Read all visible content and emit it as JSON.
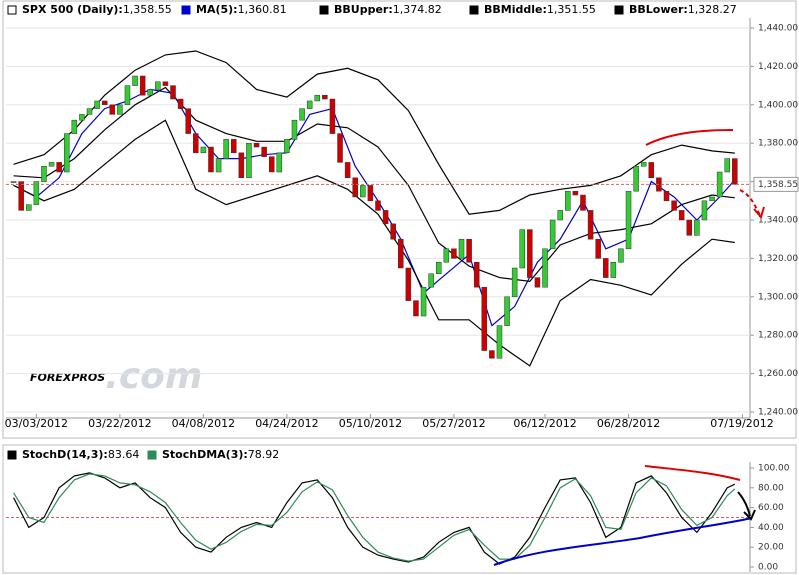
{
  "chart_data": [
    {
      "type": "candlestick",
      "name": "SPX 500 (Daily):",
      "last": {
        "value": 1358.55,
        "label": "1,358.55"
      },
      "up_color": "#33cc33",
      "down_color": "#cc0000",
      "x": [
        0,
        1,
        2,
        3,
        4,
        5,
        6,
        7,
        8,
        9,
        10,
        11,
        12,
        13,
        14,
        15,
        16,
        17,
        18,
        19,
        20,
        21,
        22,
        23,
        24,
        25,
        26,
        27,
        28,
        29,
        30,
        31,
        32,
        33,
        34,
        35,
        36,
        37,
        38,
        39,
        40,
        41,
        42,
        43,
        44,
        45,
        46,
        47,
        48,
        49,
        50,
        51,
        52,
        53,
        54,
        55,
        56,
        57,
        58,
        59,
        60,
        61,
        62,
        63,
        64,
        65,
        66,
        67,
        68,
        69,
        70,
        71,
        72,
        73,
        74,
        75,
        76,
        77,
        78,
        79,
        80,
        81,
        82,
        83,
        84,
        85,
        86,
        87,
        88,
        89,
        90,
        91,
        92,
        93,
        94,
        95
      ],
      "values": [
        1360,
        1345,
        1348,
        1360,
        1368,
        1370,
        1365,
        1385,
        1392,
        1395,
        1398,
        1402,
        1400,
        1395,
        1400,
        1410,
        1415,
        1405,
        1408,
        1412,
        1410,
        1403,
        1398,
        1385,
        1375,
        1378,
        1365,
        1372,
        1382,
        1375,
        1362,
        1380,
        1378,
        1373,
        1365,
        1375,
        1382,
        1392,
        1398,
        1402,
        1405,
        1403,
        1385,
        1370,
        1362,
        1352,
        1358,
        1350,
        1345,
        1338,
        1330,
        1315,
        1298,
        1290,
        1305,
        1312,
        1318,
        1325,
        1320,
        1330,
        1318,
        1305,
        1272,
        1268,
        1285,
        1300,
        1315,
        1335,
        1310,
        1305,
        1325,
        1340,
        1345,
        1355,
        1353,
        1345,
        1330,
        1320,
        1310,
        1318,
        1325,
        1355,
        1368,
        1370,
        1362,
        1355,
        1350,
        1345,
        1340,
        1332,
        1340,
        1350,
        1352,
        1365,
        1372,
        1358.55
      ],
      "xlim": [
        -1,
        97
      ],
      "xticks": [
        {
          "value": 3,
          "label": "03/03/2012"
        },
        {
          "value": 14,
          "label": "03/22/2012"
        },
        {
          "value": 25,
          "label": "04/08/2012"
        },
        {
          "value": 36,
          "label": "04/24/2012"
        },
        {
          "value": 47,
          "label": "05/10/2012"
        },
        {
          "value": 58,
          "label": "05/27/2012"
        },
        {
          "value": 70,
          "label": "06/12/2012"
        },
        {
          "value": 81,
          "label": "06/28/2012"
        },
        {
          "value": 96,
          "label": "07/19/2012"
        }
      ],
      "ylim": [
        1240,
        1440
      ],
      "yticks": [
        {
          "value": 1240,
          "label": "1,240.00"
        },
        {
          "value": 1260,
          "label": "1,260.00"
        },
        {
          "value": 1280,
          "label": "1,280.00"
        },
        {
          "value": 1300,
          "label": "1,300.00"
        },
        {
          "value": 1320,
          "label": "1,320.00"
        },
        {
          "value": 1340,
          "label": "1,340.00"
        },
        {
          "value": 1360,
          "label": "1,360.00"
        },
        {
          "value": 1380,
          "label": "1,380.00"
        },
        {
          "value": 1400,
          "label": "1,400.00"
        },
        {
          "value": 1420,
          "label": "1,420.00"
        },
        {
          "value": 1440,
          "label": "1,440.00"
        }
      ],
      "grid": true,
      "watermark": [
        "FOREXPROS",
        ".com"
      ],
      "overlays": [
        {
          "name": "MA(5):",
          "last": {
            "value": 1360.81,
            "label": "1,360.81"
          },
          "color": "#0000cc",
          "x": [
            0,
            3,
            6,
            9,
            12,
            15,
            18,
            21,
            24,
            27,
            30,
            33,
            36,
            39,
            42,
            45,
            48,
            51,
            54,
            57,
            60,
            63,
            66,
            69,
            72,
            75,
            78,
            81,
            84,
            87,
            90,
            93,
            95
          ],
          "values": [
            1358,
            1352,
            1362,
            1385,
            1398,
            1402,
            1408,
            1406,
            1385,
            1372,
            1372,
            1374,
            1375,
            1395,
            1398,
            1368,
            1350,
            1330,
            1302,
            1312,
            1322,
            1285,
            1295,
            1318,
            1330,
            1350,
            1325,
            1330,
            1360,
            1352,
            1340,
            1352,
            1360.81
          ]
        },
        {
          "name": "BBUpper:",
          "last": {
            "value": 1374.82,
            "label": "1,374.82"
          },
          "color": "#000000",
          "x": [
            0,
            4,
            8,
            12,
            16,
            20,
            24,
            28,
            32,
            36,
            40,
            44,
            48,
            52,
            56,
            60,
            64,
            68,
            72,
            76,
            80,
            84,
            88,
            92,
            95
          ],
          "values": [
            1369,
            1374,
            1387,
            1405,
            1418,
            1426,
            1428,
            1422,
            1408,
            1404,
            1416,
            1419,
            1413,
            1397,
            1369,
            1343,
            1345,
            1353,
            1356,
            1358,
            1363,
            1374,
            1379,
            1376,
            1374.82
          ]
        },
        {
          "name": "BBMiddle:",
          "last": {
            "value": 1351.55,
            "label": "1,351.55"
          },
          "color": "#000000",
          "x": [
            0,
            4,
            8,
            12,
            16,
            20,
            24,
            28,
            32,
            36,
            40,
            44,
            48,
            52,
            56,
            60,
            64,
            68,
            72,
            76,
            80,
            84,
            88,
            92,
            95
          ],
          "values": [
            1363,
            1362,
            1372,
            1387,
            1400,
            1409,
            1392,
            1385,
            1381,
            1381,
            1390,
            1388,
            1378,
            1358,
            1328,
            1316,
            1310,
            1308,
            1327,
            1333,
            1335,
            1338,
            1348,
            1353,
            1351.55
          ]
        },
        {
          "name": "BBLower:",
          "last": {
            "value": 1328.27,
            "label": "1,328.27"
          },
          "color": "#000000",
          "x": [
            0,
            4,
            8,
            12,
            16,
            20,
            24,
            28,
            32,
            36,
            40,
            44,
            48,
            52,
            56,
            60,
            64,
            68,
            72,
            76,
            80,
            84,
            88,
            92,
            95
          ],
          "values": [
            1358,
            1350,
            1356,
            1369,
            1382,
            1392,
            1356,
            1348,
            1353,
            1358,
            1363,
            1356,
            1343,
            1319,
            1288,
            1288,
            1275,
            1264,
            1298,
            1309,
            1306,
            1301,
            1317,
            1330,
            1328.27
          ]
        }
      ]
    },
    {
      "type": "line",
      "xlim": [
        -1,
        97
      ],
      "ylim": [
        0,
        100
      ],
      "yticks": [
        {
          "value": 0,
          "label": "0.00"
        },
        {
          "value": 20,
          "label": "20.00"
        },
        {
          "value": 40,
          "label": "40.00"
        },
        {
          "value": 60,
          "label": "60.00"
        },
        {
          "value": 80,
          "label": "80.00"
        },
        {
          "value": 100,
          "label": "100.00"
        }
      ],
      "hline": 50,
      "series": [
        {
          "name": "StochD(14,3):",
          "last": {
            "value": 83.64,
            "label": "83.64"
          },
          "color": "#000000",
          "x": [
            0,
            2,
            4,
            6,
            8,
            10,
            12,
            14,
            16,
            18,
            20,
            22,
            24,
            26,
            28,
            30,
            32,
            34,
            36,
            38,
            40,
            42,
            44,
            46,
            48,
            50,
            52,
            54,
            56,
            58,
            60,
            62,
            64,
            66,
            68,
            70,
            72,
            74,
            76,
            78,
            80,
            82,
            84,
            86,
            88,
            90,
            92,
            94,
            95
          ],
          "values": [
            70,
            40,
            50,
            80,
            92,
            95,
            90,
            80,
            85,
            70,
            60,
            35,
            20,
            15,
            30,
            40,
            45,
            40,
            65,
            85,
            88,
            70,
            40,
            20,
            12,
            8,
            5,
            10,
            25,
            35,
            40,
            15,
            3,
            10,
            30,
            60,
            88,
            90,
            65,
            30,
            40,
            85,
            92,
            75,
            50,
            35,
            55,
            80,
            83.64
          ]
        },
        {
          "name": "StochDMA(3):",
          "last": {
            "value": 78.92,
            "label": "78.92"
          },
          "color": "#2e8b57",
          "x": [
            0,
            2,
            4,
            6,
            8,
            10,
            12,
            14,
            16,
            18,
            20,
            22,
            24,
            26,
            28,
            30,
            32,
            34,
            36,
            38,
            40,
            42,
            44,
            46,
            48,
            50,
            52,
            54,
            56,
            58,
            60,
            62,
            64,
            66,
            68,
            70,
            72,
            74,
            76,
            78,
            80,
            82,
            84,
            86,
            88,
            90,
            92,
            94,
            95
          ],
          "values": [
            75,
            50,
            45,
            70,
            88,
            94,
            92,
            85,
            83,
            76,
            65,
            45,
            27,
            18,
            25,
            36,
            43,
            42,
            55,
            76,
            86,
            78,
            52,
            30,
            15,
            9,
            6,
            8,
            20,
            32,
            38,
            22,
            8,
            8,
            22,
            50,
            80,
            89,
            72,
            40,
            38,
            75,
            90,
            82,
            58,
            42,
            50,
            72,
            78.92
          ]
        }
      ]
    }
  ]
}
